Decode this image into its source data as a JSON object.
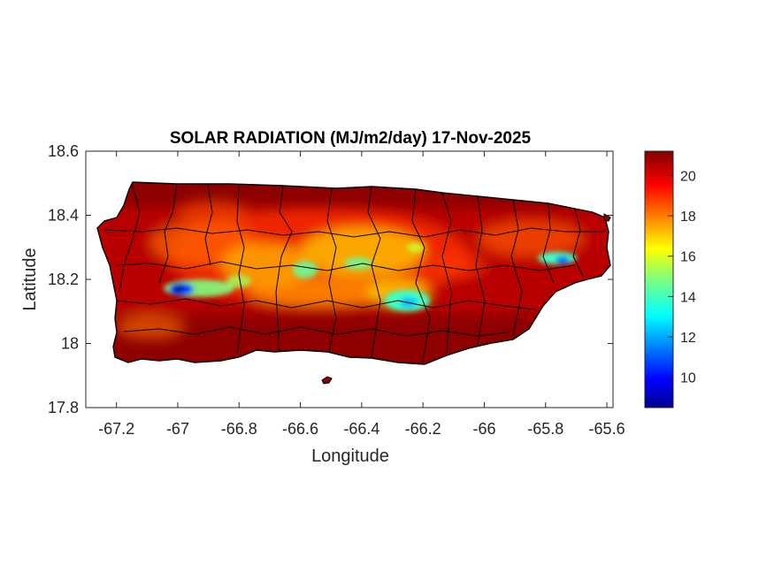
{
  "map": {
    "title": "SOLAR RADIATION (MJ/m2/day) 17-Nov-2025",
    "xlabel": "Longitude",
    "ylabel": "Latitude",
    "xlim": [
      -67.3,
      -65.58
    ],
    "ylim": [
      17.8,
      18.6
    ],
    "x_ticks": [
      "-67.2",
      "-67",
      "-66.8",
      "-66.6",
      "-66.4",
      "-66.2",
      "-66",
      "-65.8",
      "-65.6"
    ],
    "y_ticks": [
      "18.6",
      "18.4",
      "18.2",
      "18",
      "17.8"
    ],
    "colorbar": {
      "range": [
        8.5,
        21.2
      ],
      "ticks": [
        "20",
        "18",
        "16",
        "14",
        "12",
        "10"
      ],
      "colormap": "jet"
    },
    "region": "Puerto Rico",
    "dominant_value_note": "",
    "colors": {
      "high": "#7f0000",
      "mid": "#ffff00",
      "low": "#00008f"
    }
  }
}
